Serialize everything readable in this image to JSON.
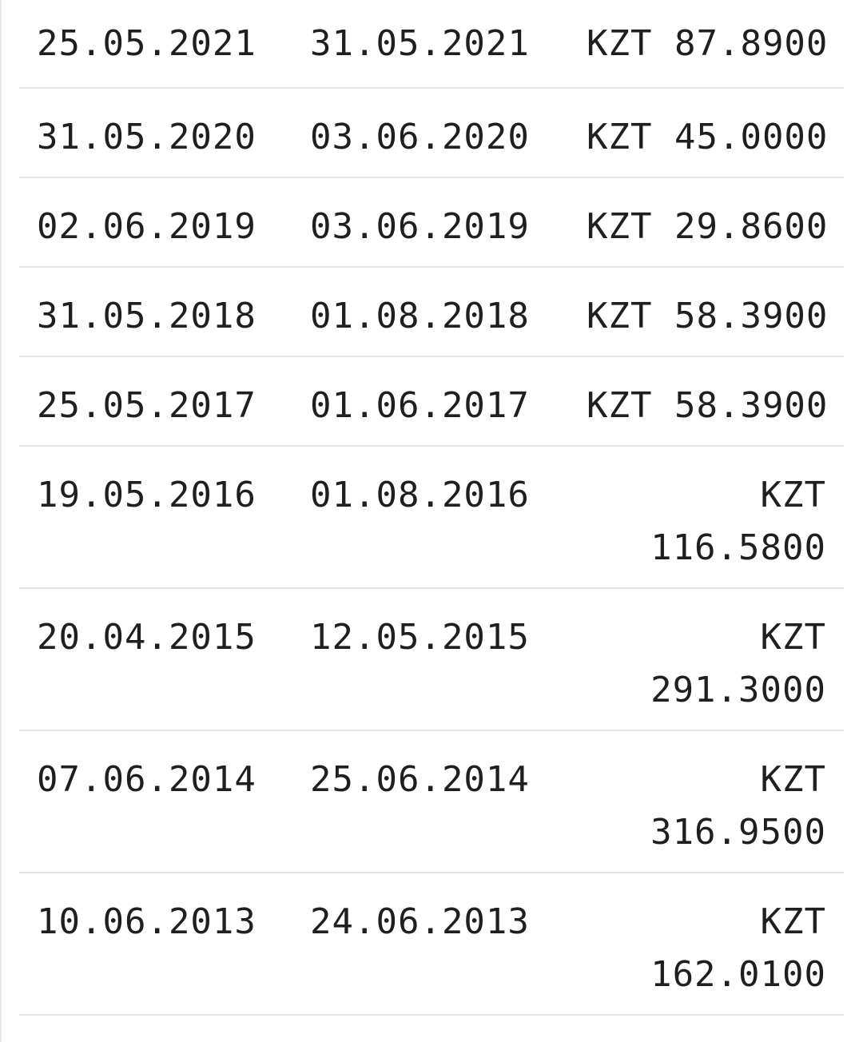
{
  "table": {
    "rows": [
      {
        "col1": "25.05.2021",
        "col2": "31.05.2021",
        "currency": "KZT",
        "amount": "87.8900"
      },
      {
        "col1": "31.05.2020",
        "col2": "03.06.2020",
        "currency": "KZT",
        "amount": "45.0000"
      },
      {
        "col1": "02.06.2019",
        "col2": "03.06.2019",
        "currency": "KZT",
        "amount": "29.8600"
      },
      {
        "col1": "31.05.2018",
        "col2": "01.08.2018",
        "currency": "KZT",
        "amount": "58.3900"
      },
      {
        "col1": "25.05.2017",
        "col2": "01.06.2017",
        "currency": "KZT",
        "amount": "58.3900"
      },
      {
        "col1": "19.05.2016",
        "col2": "01.08.2016",
        "currency": "KZT",
        "amount": "116.5800"
      },
      {
        "col1": "20.04.2015",
        "col2": "12.05.2015",
        "currency": "KZT",
        "amount": "291.3000"
      },
      {
        "col1": "07.06.2014",
        "col2": "25.06.2014",
        "currency": "KZT",
        "amount": "316.9500"
      },
      {
        "col1": "10.06.2013",
        "col2": "24.06.2013",
        "currency": "KZT",
        "amount": "162.0100"
      }
    ]
  }
}
